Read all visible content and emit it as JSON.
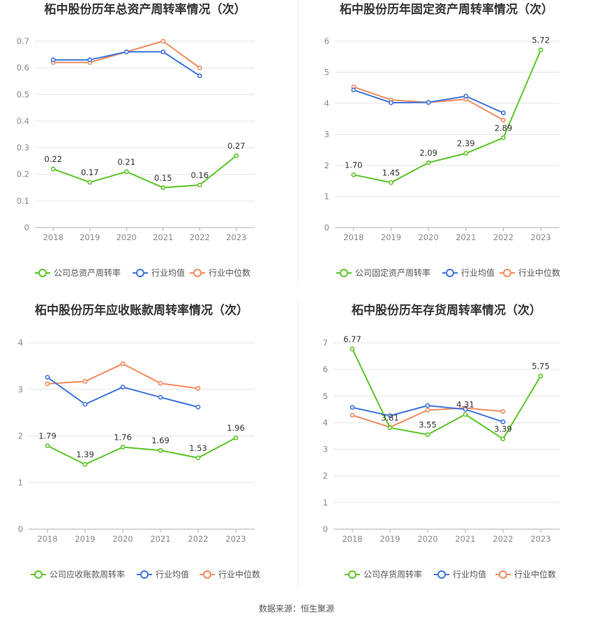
{
  "colors": {
    "company": "#5dc529",
    "avg": "#3f74dd",
    "median": "#f08c5e",
    "grid": "#e6e6e6",
    "divider": "#eeeeee"
  },
  "legend": {
    "avg": "行业均值",
    "median": "行业中位数"
  },
  "source": "数据来源：恒生聚源",
  "chart_data": [
    {
      "type": "line",
      "title": "柘中股份历年总资产周转率情况（次）",
      "categories": [
        "2018",
        "2019",
        "2020",
        "2021",
        "2022",
        "2023"
      ],
      "ylim": [
        0,
        0.7
      ],
      "yticks": [
        "0",
        "0.1",
        "0.2",
        "0.3",
        "0.4",
        "0.5",
        "0.6",
        "0.7"
      ],
      "grid": true,
      "legend_position": "bottom",
      "series": [
        {
          "name": "公司总资产周转率",
          "values": [
            0.22,
            0.17,
            0.21,
            0.15,
            0.16,
            0.27
          ],
          "labels": [
            "0.22",
            "0.17",
            "0.21",
            "0.15",
            "0.16",
            "0.27"
          ]
        },
        {
          "name": "行业均值",
          "values": [
            0.63,
            0.63,
            0.66,
            0.66,
            0.57,
            null
          ]
        },
        {
          "name": "行业中位数",
          "values": [
            0.62,
            0.62,
            0.66,
            0.7,
            0.6,
            null
          ]
        }
      ]
    },
    {
      "type": "line",
      "title": "柘中股份历年固定资产周转率情况（次）",
      "categories": [
        "2018",
        "2019",
        "2020",
        "2021",
        "2022",
        "2023"
      ],
      "ylim": [
        0,
        6
      ],
      "yticks": [
        "0",
        "1",
        "2",
        "3",
        "4",
        "5",
        "6"
      ],
      "grid": true,
      "legend_position": "bottom",
      "series": [
        {
          "name": "公司固定资产周转率",
          "values": [
            1.7,
            1.45,
            2.09,
            2.39,
            2.89,
            5.72
          ],
          "labels": [
            "1.70",
            "1.45",
            "2.09",
            "2.39",
            "2.89",
            "5.72"
          ]
        },
        {
          "name": "行业均值",
          "values": [
            4.43,
            4.02,
            4.03,
            4.23,
            3.69,
            null
          ]
        },
        {
          "name": "行业中位数",
          "values": [
            4.53,
            4.11,
            4.03,
            4.13,
            3.46,
            null
          ]
        }
      ]
    },
    {
      "type": "line",
      "title": "柘中股份历年应收账款周转率情况（次）",
      "categories": [
        "2018",
        "2019",
        "2020",
        "2021",
        "2022",
        "2023"
      ],
      "ylim": [
        0,
        4
      ],
      "yticks": [
        "0",
        "1",
        "2",
        "3",
        "4"
      ],
      "grid": true,
      "legend_position": "bottom",
      "series": [
        {
          "name": "公司应收账款周转率",
          "values": [
            1.79,
            1.39,
            1.76,
            1.69,
            1.53,
            1.96
          ],
          "labels": [
            "1.79",
            "1.39",
            "1.76",
            "1.69",
            "1.53",
            "1.96"
          ]
        },
        {
          "name": "行业均值",
          "values": [
            3.26,
            2.68,
            3.05,
            2.83,
            2.62,
            null
          ]
        },
        {
          "name": "行业中位数",
          "values": [
            3.12,
            3.17,
            3.55,
            3.13,
            3.02,
            null
          ]
        }
      ]
    },
    {
      "type": "line",
      "title": "柘中股份历年存货周转率情况（次）",
      "categories": [
        "2018",
        "2019",
        "2020",
        "2021",
        "2022",
        "2023"
      ],
      "ylim": [
        0,
        7
      ],
      "yticks": [
        "0",
        "1",
        "2",
        "3",
        "4",
        "5",
        "6",
        "7"
      ],
      "grid": true,
      "legend_position": "bottom",
      "series": [
        {
          "name": "公司存货周转率",
          "values": [
            6.77,
            3.81,
            3.55,
            4.31,
            3.39,
            5.75
          ],
          "labels": [
            "6.77",
            "3.81",
            "3.55",
            "4.31",
            "3.39",
            "5.75"
          ]
        },
        {
          "name": "行业均值",
          "values": [
            4.57,
            4.26,
            4.64,
            4.5,
            4.03,
            null
          ]
        },
        {
          "name": "行业中位数",
          "values": [
            4.28,
            3.83,
            4.47,
            4.55,
            4.42,
            null
          ]
        }
      ]
    }
  ]
}
